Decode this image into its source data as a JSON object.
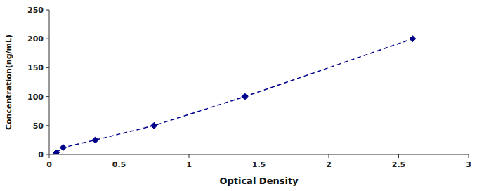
{
  "chart_data": {
    "type": "line",
    "x": [
      0.05,
      0.1,
      0.33,
      0.75,
      1.4,
      2.6
    ],
    "values": [
      3,
      12,
      25,
      50,
      100,
      200
    ],
    "color": "#00008B",
    "marker": "diamond",
    "line_style": "dashed",
    "xlabel": "Optical Density",
    "ylabel": "Concentration(ng/mL)",
    "xlim": [
      0,
      3
    ],
    "ylim": [
      0,
      250
    ],
    "xticks": [
      0,
      0.5,
      1,
      1.5,
      2,
      2.5,
      3
    ],
    "yticks": [
      0,
      50,
      100,
      150,
      200,
      250
    ]
  }
}
